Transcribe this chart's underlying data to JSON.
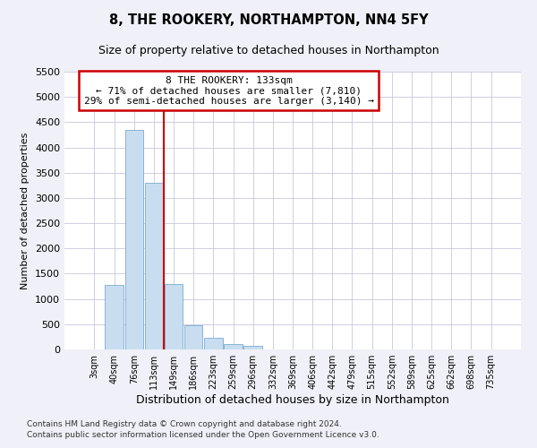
{
  "title": "8, THE ROOKERY, NORTHAMPTON, NN4 5FY",
  "subtitle": "Size of property relative to detached houses in Northampton",
  "xlabel": "Distribution of detached houses by size in Northampton",
  "ylabel": "Number of detached properties",
  "footnote1": "Contains HM Land Registry data © Crown copyright and database right 2024.",
  "footnote2": "Contains public sector information licensed under the Open Government Licence v3.0.",
  "bar_labels": [
    "3sqm",
    "40sqm",
    "76sqm",
    "113sqm",
    "149sqm",
    "186sqm",
    "223sqm",
    "259sqm",
    "296sqm",
    "332sqm",
    "369sqm",
    "406sqm",
    "442sqm",
    "479sqm",
    "515sqm",
    "552sqm",
    "589sqm",
    "625sqm",
    "662sqm",
    "698sqm",
    "735sqm"
  ],
  "bar_values": [
    0,
    1280,
    4350,
    3300,
    1290,
    480,
    230,
    100,
    75,
    0,
    0,
    0,
    0,
    0,
    0,
    0,
    0,
    0,
    0,
    0,
    0
  ],
  "bar_color": "#c8ddf0",
  "bar_edge_color": "#7aabcf",
  "ylim_max": 5500,
  "ytick_step": 500,
  "vline_x": 3.5,
  "vline_color": "#cc0000",
  "ann_line1": "8 THE ROOKERY: 133sqm",
  "ann_line2": "← 71% of detached houses are smaller (7,810)",
  "ann_line3": "29% of semi-detached houses are larger (3,140) →",
  "ann_box_fc": "#ffffff",
  "ann_box_ec": "#cc0000",
  "bg_color": "#f0f0f8",
  "plot_bg_color": "#ffffff",
  "grid_color": "#c8c8dc",
  "title_fontsize": 10.5,
  "subtitle_fontsize": 9,
  "xlabel_fontsize": 9,
  "ylabel_fontsize": 8,
  "xtick_fontsize": 7,
  "ytick_fontsize": 8,
  "ann_fontsize": 8,
  "footnote_fontsize": 6.5
}
